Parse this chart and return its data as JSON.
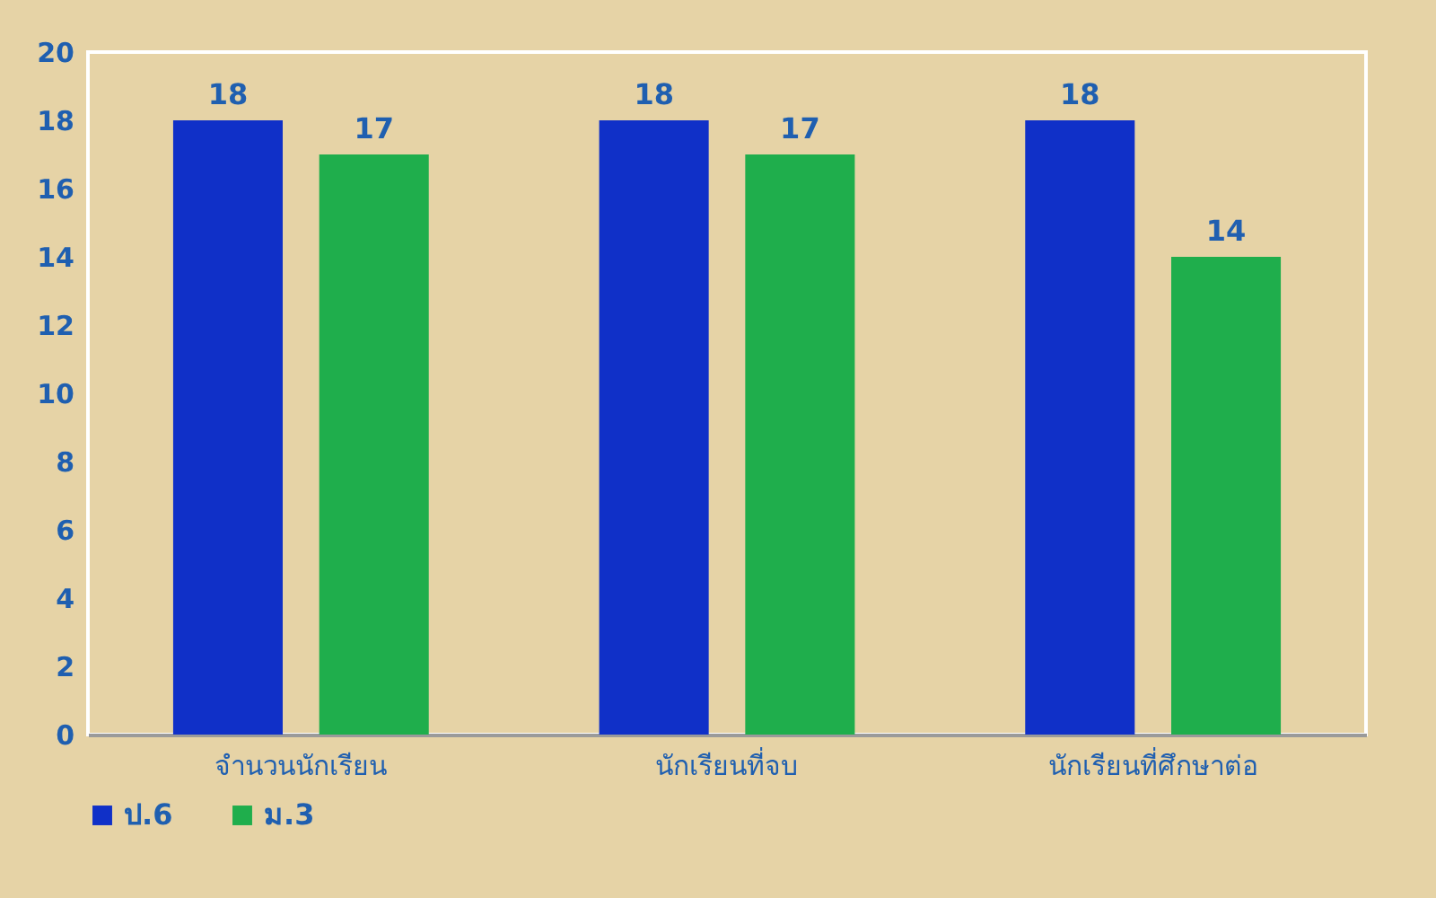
{
  "chart_data": {
    "type": "bar",
    "categories": [
      "จำนวนนักเรียน",
      "นักเรียนที่จบ",
      "นักเรียนที่ศึกษาต่อ"
    ],
    "series": [
      {
        "name": "ป.6",
        "color": "#1030c8",
        "values": [
          18,
          18,
          18
        ]
      },
      {
        "name": "ม.3",
        "color": "#1fae4c",
        "values": [
          17,
          17,
          14
        ]
      }
    ],
    "ylim": [
      0,
      20
    ],
    "yticks": [
      0,
      2,
      4,
      6,
      8,
      10,
      12,
      14,
      16,
      18,
      20
    ],
    "grid": false,
    "legend": "bottom",
    "data_labels": true
  }
}
